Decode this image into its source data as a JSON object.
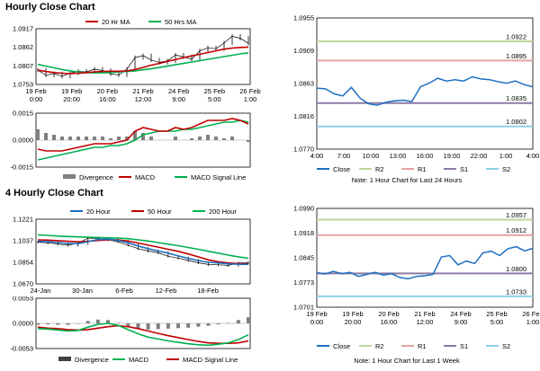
{
  "section1": {
    "title": "Hourly Close Chart"
  },
  "section2": {
    "title": "4 Hourly Close Chart"
  },
  "notes": {
    "hourly": "Note: 1 Hour Chart for Last 24 Hours",
    "four_hourly": "Note: 1 Hour Chart for Last 1 Week"
  },
  "colors": {
    "close": "#1f6fc1",
    "ma_red": "#c00000",
    "ma_green": "#00b050",
    "r2": "#bfd69a",
    "r1": "#e6a3a3",
    "s1": "#8c7aa6",
    "s2": "#8fd0e8",
    "divergence": "#7f7f7f",
    "macd": "#c00000",
    "signal": "#00b050",
    "ma20": "#1f6fc1"
  },
  "chart_data": [
    {
      "id": "hourly-price",
      "type": "line",
      "legend": [
        "20 Hr MA",
        "50 Hrs MA"
      ],
      "y_ticks": [
        "1.0917",
        "1.0862",
        "1.0807",
        "1.0753"
      ],
      "x_ticks": [
        {
          "day": "19 Feb",
          "time": "0:00"
        },
        {
          "day": "19 Feb",
          "time": "20:00"
        },
        {
          "day": "20 Feb",
          "time": "16:00"
        },
        {
          "day": "21 Feb",
          "time": "12:00"
        },
        {
          "day": "24 Feb",
          "time": "9:00"
        },
        {
          "day": "25 Feb",
          "time": "5:00"
        },
        {
          "day": "26 Feb",
          "time": "1:00"
        }
      ],
      "ylim": [
        1.0753,
        1.0917
      ],
      "series": [
        {
          "name": "20 Hr MA",
          "values": [
            1.0795,
            1.0791,
            1.0788,
            1.0786,
            1.0785,
            1.0786,
            1.0788,
            1.079,
            1.0791,
            1.0792,
            1.0792,
            1.0793,
            1.0797,
            1.0803,
            1.081,
            1.0815,
            1.0821,
            1.0826,
            1.0832,
            1.0837,
            1.0842,
            1.0847,
            1.0852,
            1.0857,
            1.086,
            1.0862,
            1.0863
          ]
        },
        {
          "name": "50 Hrs MA",
          "values": [
            1.0812,
            1.0807,
            1.0802,
            1.0797,
            1.0793,
            1.079,
            1.0788,
            1.0787,
            1.0787,
            1.0788,
            1.079,
            1.0791,
            1.0793,
            1.0796,
            1.0799,
            1.0803,
            1.0807,
            1.0811,
            1.0815,
            1.0819,
            1.0823,
            1.0827,
            1.0831,
            1.0835,
            1.0839,
            1.0843,
            1.0846
          ]
        },
        {
          "name": "Close",
          "values": [
            1.0795,
            1.078,
            1.0785,
            1.0777,
            1.0786,
            1.0792,
            1.079,
            1.0798,
            1.0794,
            1.0784,
            1.0781,
            1.0798,
            1.0832,
            1.0838,
            1.0825,
            1.0818,
            1.0822,
            1.084,
            1.0834,
            1.0827,
            1.0852,
            1.0861,
            1.0858,
            1.0875,
            1.0895,
            1.0889,
            1.0874
          ]
        }
      ]
    },
    {
      "id": "hourly-macd",
      "type": "line",
      "legend": [
        "Divergence",
        "MACD",
        "MACD Signal Line"
      ],
      "y_ticks": [
        "0.0015",
        "0.0000",
        "-0.0015"
      ],
      "ylim": [
        -0.0015,
        0.0015
      ],
      "series": [
        {
          "name": "MACD",
          "values": [
            -0.0005,
            -0.0006,
            -0.0006,
            -0.0006,
            -0.0005,
            -0.0004,
            -0.0003,
            -0.0002,
            -0.0002,
            -0.0002,
            -0.0001,
            0.0,
            0.0005,
            0.0007,
            0.0006,
            0.0005,
            0.0005,
            0.0007,
            0.0006,
            0.0007,
            0.0009,
            0.0011,
            0.0011,
            0.0011,
            0.0012,
            0.0011,
            0.0009
          ]
        },
        {
          "name": "MACD Signal Line",
          "values": [
            -0.0011,
            -0.001,
            -0.0009,
            -0.0008,
            -0.0007,
            -0.0006,
            -0.0005,
            -0.0004,
            -0.0004,
            -0.0003,
            -0.0003,
            -0.0002,
            0.0,
            0.0003,
            0.0004,
            0.0005,
            0.0005,
            0.0005,
            0.0006,
            0.0006,
            0.0007,
            0.0008,
            0.0009,
            0.001,
            0.001,
            0.0011,
            0.001
          ]
        },
        {
          "name": "Divergence",
          "values": [
            0.0006,
            0.0004,
            0.0003,
            0.0002,
            0.0002,
            0.0002,
            0.0002,
            0.0002,
            0.0002,
            0.0001,
            0.0002,
            0.0002,
            0.0005,
            0.0004,
            0.0002,
            0.0,
            0.0,
            0.0002,
            0.0,
            0.0001,
            0.0002,
            0.0003,
            0.0002,
            0.0001,
            0.0002,
            0.0,
            -0.0001
          ]
        }
      ]
    },
    {
      "id": "hourly-levels",
      "type": "line",
      "y_ticks": [
        "1.0955",
        "1.0909",
        "1.0863",
        "1.0816",
        "1.0770"
      ],
      "x_ticks": [
        "4:00",
        "7:00",
        "10:00",
        "13:00",
        "16:00",
        "19:00",
        "22:00",
        "1:00",
        "4:00"
      ],
      "ylim": [
        1.077,
        1.0955
      ],
      "legend": [
        "Close",
        "R2",
        "R1",
        "S1",
        "S2"
      ],
      "levels": [
        {
          "name": "R2",
          "value": 1.0922,
          "label": "1.0922"
        },
        {
          "name": "R1",
          "value": 1.0895,
          "label": "1.0895"
        },
        {
          "name": "S1",
          "value": 1.0835,
          "label": "1.0835"
        },
        {
          "name": "S2",
          "value": 1.0802,
          "label": "1.0802"
        }
      ],
      "series": [
        {
          "name": "Close",
          "values": [
            1.0856,
            1.0855,
            1.0848,
            1.0845,
            1.0857,
            1.0842,
            1.0834,
            1.0832,
            1.0836,
            1.0838,
            1.0839,
            1.0837,
            1.0858,
            1.0863,
            1.087,
            1.0866,
            1.0868,
            1.0866,
            1.0872,
            1.0869,
            1.0868,
            1.0865,
            1.0863,
            1.0866,
            1.0861,
            1.0858
          ]
        }
      ]
    },
    {
      "id": "four-hourly-price",
      "type": "line",
      "legend": [
        "20 Hour",
        "50 Hour",
        "200 Hour"
      ],
      "y_ticks": [
        "1.1221",
        "1.1037",
        "1.0854",
        "1.0670"
      ],
      "x_ticks": [
        "24-Jan",
        "30-Jan",
        "6-Feb",
        "12-Feb",
        "18-Feb"
      ],
      "ylim": [
        1.067,
        1.1221
      ],
      "series": [
        {
          "name": "20 Hour",
          "values": [
            1.1032,
            1.103,
            1.1022,
            1.1015,
            1.1012,
            1.103,
            1.1047,
            1.1051,
            1.1041,
            1.102,
            1.0993,
            1.097,
            1.095,
            1.0932,
            1.0908,
            1.0888,
            1.0868,
            1.0854,
            1.0848,
            1.0841,
            1.0837,
            1.0836
          ]
        },
        {
          "name": "50 Hour",
          "values": [
            1.1045,
            1.1043,
            1.1038,
            1.1033,
            1.1028,
            1.1033,
            1.104,
            1.1045,
            1.1045,
            1.1035,
            1.1018,
            1.1,
            1.0983,
            1.0965,
            1.0947,
            1.0925,
            1.09,
            1.0875,
            1.0858,
            1.0848,
            1.0843,
            1.084
          ]
        },
        {
          "name": "200 Hour",
          "values": [
            1.1088,
            1.1083,
            1.1077,
            1.1073,
            1.107,
            1.1067,
            1.1065,
            1.1062,
            1.106,
            1.1055,
            1.1045,
            1.1035,
            1.1022,
            1.1008,
            1.0995,
            1.098,
            1.0965,
            1.0948,
            1.0932,
            1.0915,
            1.09,
            1.0888
          ]
        },
        {
          "name": "Close",
          "values": [
            1.1025,
            1.102,
            1.101,
            1.1,
            1.1015,
            1.106,
            1.1055,
            1.1045,
            1.103,
            1.1,
            1.097,
            1.095,
            1.0935,
            1.0905,
            1.089,
            1.087,
            1.085,
            1.0835,
            1.0832,
            1.0828,
            1.0848,
            1.085
          ]
        }
      ]
    },
    {
      "id": "four-hourly-macd",
      "type": "line",
      "legend": [
        "Divergence",
        "MACD",
        "MACD Signal Line"
      ],
      "y_ticks": [
        "0.0053",
        "0.0000",
        "-0.0053"
      ],
      "ylim": [
        -0.0053,
        0.0053
      ],
      "series": [
        {
          "name": "MACD",
          "values": [
            -0.0011,
            -0.0012,
            -0.0014,
            -0.0016,
            -0.0015,
            -0.0008,
            -0.0002,
            0.0,
            -0.0004,
            -0.0013,
            -0.0022,
            -0.0029,
            -0.0033,
            -0.0037,
            -0.004,
            -0.0043,
            -0.0045,
            -0.0046,
            -0.0044,
            -0.0041,
            -0.0034,
            -0.0024
          ]
        },
        {
          "name": "MACD Signal Line",
          "values": [
            -0.0008,
            -0.001,
            -0.0011,
            -0.0013,
            -0.0014,
            -0.0013,
            -0.001,
            -0.0007,
            -0.0005,
            -0.0007,
            -0.0011,
            -0.0016,
            -0.0021,
            -0.0026,
            -0.003,
            -0.0034,
            -0.0038,
            -0.0041,
            -0.0042,
            -0.0042,
            -0.0041,
            -0.0037
          ]
        },
        {
          "name": "Divergence",
          "values": [
            -0.0003,
            -0.0002,
            -0.0003,
            -0.0003,
            -0.0001,
            0.0005,
            0.0008,
            0.0007,
            0.0001,
            -0.0006,
            -0.0011,
            -0.0013,
            -0.0012,
            -0.0011,
            -0.001,
            -0.0009,
            -0.0007,
            -0.0005,
            -0.0002,
            0.0001,
            0.0007,
            0.0013
          ]
        }
      ]
    },
    {
      "id": "four-hourly-levels",
      "type": "line",
      "y_ticks": [
        "1.0990",
        "1.0918",
        "1.0845",
        "1.0773",
        "1.0701"
      ],
      "x_ticks": [
        {
          "day": "19 Feb",
          "time": "0:00"
        },
        {
          "day": "19 Feb",
          "time": "20:00"
        },
        {
          "day": "20 Feb",
          "time": "16:00"
        },
        {
          "day": "21 Feb",
          "time": "12:00"
        },
        {
          "day": "24 Feb",
          "time": "9:00"
        },
        {
          "day": "25 Feb",
          "time": "5:00"
        },
        {
          "day": "26 Feb",
          "time": "1:00"
        }
      ],
      "ylim": [
        1.0701,
        1.099
      ],
      "legend": [
        "Close",
        "R2",
        "R1",
        "S1",
        "S2"
      ],
      "levels": [
        {
          "name": "R2",
          "value": 1.0957,
          "label": "1.0957"
        },
        {
          "name": "R1",
          "value": 1.0912,
          "label": "1.0912"
        },
        {
          "name": "S1",
          "value": 1.08,
          "label": "1.0800"
        },
        {
          "name": "S2",
          "value": 1.0733,
          "label": "1.0733"
        }
      ],
      "series": [
        {
          "name": "Close",
          "values": [
            1.0802,
            1.0798,
            1.0806,
            1.0799,
            1.0803,
            1.0791,
            1.0797,
            1.0803,
            1.0795,
            1.0799,
            1.0788,
            1.0784,
            1.0791,
            1.0793,
            1.0797,
            1.0848,
            1.0852,
            1.0825,
            1.0836,
            1.0829,
            1.086,
            1.0865,
            1.0852,
            1.0872,
            1.0878,
            1.0866,
            1.0873
          ]
        }
      ]
    }
  ]
}
